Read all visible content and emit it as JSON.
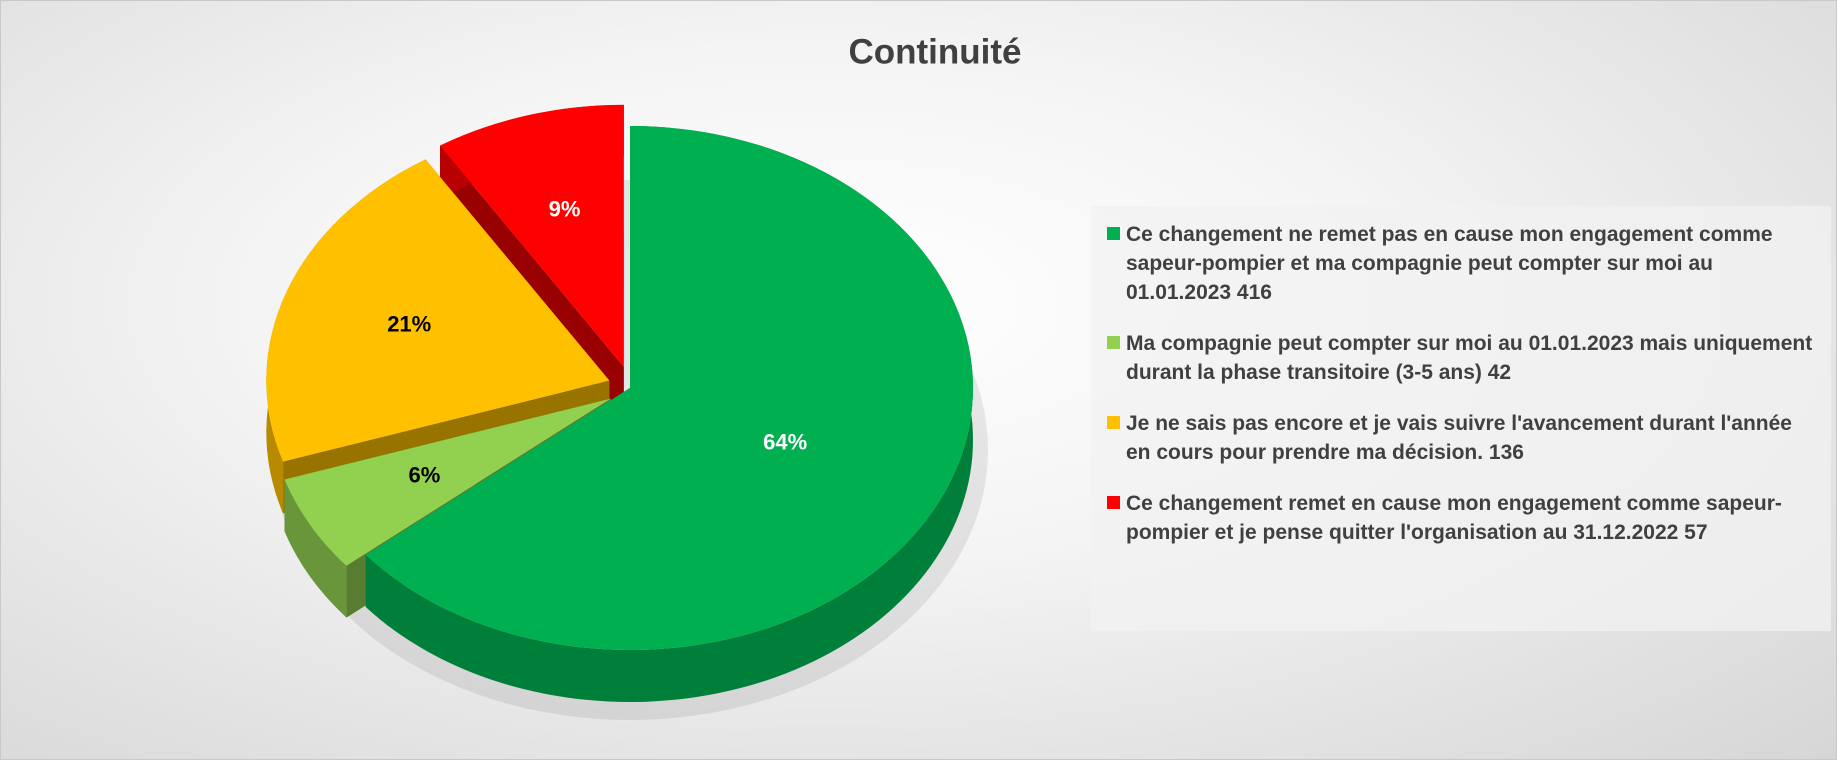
{
  "chart_data": {
    "type": "pie",
    "title": "Continuité",
    "categories": [
      "Ce changement ne remet pas en cause mon engagement comme sapeur-pompier et ma compagnie peut compter sur moi au 01.01.2023 416",
      "Ma compagnie peut compter sur moi au 01.01.2023 mais uniquement durant la phase transitoire (3-5 ans) 42",
      "Je ne sais pas encore et je vais suivre l'avancement durant l'année en cours pour prendre ma décision. 136",
      "Ce changement remet en cause mon engagement comme sapeur-pompier et je pense quitter l'organisation au 31.12.2022 57"
    ],
    "values": [
      64,
      6,
      21,
      9
    ],
    "value_labels": [
      "64%",
      "6%",
      "21%",
      "9%"
    ],
    "colors": [
      "#00b050",
      "#92d050",
      "#ffc000",
      "#ff0000"
    ],
    "legend": "right"
  }
}
